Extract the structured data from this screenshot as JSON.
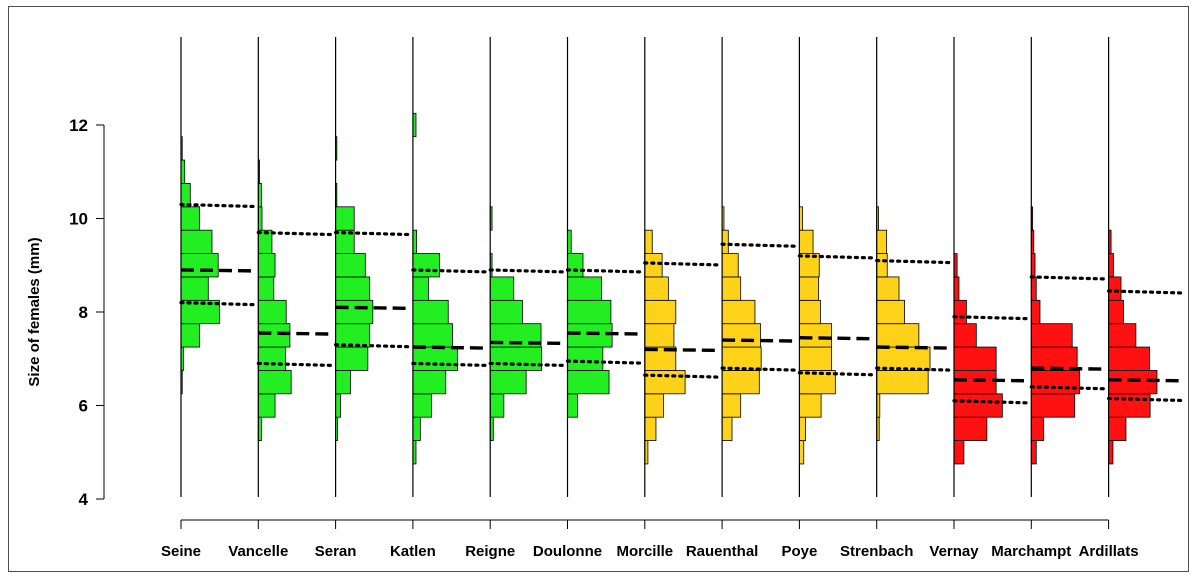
{
  "chart_data": {
    "type": "histogram",
    "ylabel": "Size of females (mm)",
    "ylim": [
      4,
      13
    ],
    "yticks": [
      "4",
      "6",
      "8",
      "10",
      "12"
    ],
    "bin_width_mm": 0.5,
    "grid": false,
    "colors": {
      "green": "#22ee22",
      "yellow": "#ffd21a",
      "red": "#ff1111"
    },
    "sites": [
      {
        "name": "Seine",
        "color": "green",
        "mean": 8.9,
        "q_low": 8.2,
        "q_high": 10.3,
        "bins": [
          [
            6.5,
            0.02
          ],
          [
            7.0,
            0.04
          ],
          [
            7.5,
            0.3
          ],
          [
            8.0,
            0.62
          ],
          [
            8.5,
            0.44
          ],
          [
            9.0,
            0.6
          ],
          [
            9.5,
            0.5
          ],
          [
            10.0,
            0.3
          ],
          [
            10.5,
            0.15
          ],
          [
            11.0,
            0.06
          ],
          [
            11.5,
            0.02
          ]
        ]
      },
      {
        "name": "Vancelle",
        "color": "green",
        "mean": 7.55,
        "q_low": 6.9,
        "q_high": 9.7,
        "bins": [
          [
            5.5,
            0.05
          ],
          [
            6.0,
            0.27
          ],
          [
            6.5,
            0.53
          ],
          [
            7.0,
            0.44
          ],
          [
            7.5,
            0.51
          ],
          [
            8.0,
            0.45
          ],
          [
            8.5,
            0.25
          ],
          [
            9.0,
            0.27
          ],
          [
            9.5,
            0.22
          ],
          [
            10.0,
            0.06
          ],
          [
            10.5,
            0.05
          ],
          [
            11.0,
            0.02
          ]
        ]
      },
      {
        "name": "Seran",
        "color": "green",
        "mean": 8.1,
        "q_low": 7.3,
        "q_high": 9.7,
        "bins": [
          [
            5.5,
            0.03
          ],
          [
            6.0,
            0.08
          ],
          [
            6.5,
            0.24
          ],
          [
            7.0,
            0.52
          ],
          [
            7.5,
            0.55
          ],
          [
            8.0,
            0.6
          ],
          [
            8.5,
            0.55
          ],
          [
            9.0,
            0.48
          ],
          [
            9.5,
            0.3
          ],
          [
            10.0,
            0.3
          ],
          [
            10.5,
            0.02
          ],
          [
            11.5,
            0.02
          ]
        ]
      },
      {
        "name": "Katlen",
        "color": "green",
        "mean": 7.25,
        "q_low": 6.9,
        "q_high": 8.9,
        "bins": [
          [
            5.0,
            0.05
          ],
          [
            5.5,
            0.12
          ],
          [
            6.0,
            0.3
          ],
          [
            6.5,
            0.53
          ],
          [
            7.0,
            0.72
          ],
          [
            7.5,
            0.64
          ],
          [
            8.0,
            0.57
          ],
          [
            8.5,
            0.25
          ],
          [
            9.0,
            0.43
          ],
          [
            9.5,
            0.06
          ],
          [
            12.0,
            0.05
          ]
        ]
      },
      {
        "name": "Reigne",
        "color": "green",
        "mean": 7.35,
        "q_low": 6.9,
        "q_high": 8.9,
        "bins": [
          [
            5.5,
            0.05
          ],
          [
            6.0,
            0.22
          ],
          [
            6.5,
            0.58
          ],
          [
            7.0,
            0.83
          ],
          [
            7.5,
            0.82
          ],
          [
            8.0,
            0.52
          ],
          [
            8.5,
            0.38
          ],
          [
            9.0,
            0.03
          ],
          [
            10.0,
            0.03
          ]
        ]
      },
      {
        "name": "Doulonne",
        "color": "green",
        "mean": 7.55,
        "q_low": 6.95,
        "q_high": 8.9,
        "bins": [
          [
            6.0,
            0.16
          ],
          [
            6.5,
            0.67
          ],
          [
            7.0,
            0.57
          ],
          [
            7.5,
            0.72
          ],
          [
            8.0,
            0.7
          ],
          [
            8.5,
            0.55
          ],
          [
            9.0,
            0.25
          ],
          [
            9.5,
            0.06
          ]
        ]
      },
      {
        "name": "Morcille",
        "color": "yellow",
        "mean": 7.2,
        "q_low": 6.65,
        "q_high": 9.05,
        "bins": [
          [
            5.0,
            0.05
          ],
          [
            5.5,
            0.18
          ],
          [
            6.0,
            0.3
          ],
          [
            6.5,
            0.65
          ],
          [
            7.0,
            0.5
          ],
          [
            7.5,
            0.47
          ],
          [
            8.0,
            0.5
          ],
          [
            8.5,
            0.38
          ],
          [
            9.0,
            0.28
          ],
          [
            9.5,
            0.12
          ]
        ]
      },
      {
        "name": "Rauenthal",
        "color": "yellow",
        "mean": 7.4,
        "q_low": 6.8,
        "q_high": 9.45,
        "bins": [
          [
            5.5,
            0.16
          ],
          [
            6.0,
            0.3
          ],
          [
            6.5,
            0.6
          ],
          [
            7.0,
            0.63
          ],
          [
            7.5,
            0.62
          ],
          [
            8.0,
            0.53
          ],
          [
            8.5,
            0.3
          ],
          [
            9.0,
            0.26
          ],
          [
            9.5,
            0.1
          ],
          [
            10.0,
            0.03
          ]
        ]
      },
      {
        "name": "Poye",
        "color": "yellow",
        "mean": 7.45,
        "q_low": 6.7,
        "q_high": 9.2,
        "bins": [
          [
            5.0,
            0.07
          ],
          [
            5.5,
            0.1
          ],
          [
            6.0,
            0.35
          ],
          [
            6.5,
            0.58
          ],
          [
            7.0,
            0.52
          ],
          [
            7.5,
            0.52
          ],
          [
            8.0,
            0.34
          ],
          [
            8.5,
            0.31
          ],
          [
            9.0,
            0.32
          ],
          [
            9.5,
            0.22
          ],
          [
            10.0,
            0.05
          ]
        ]
      },
      {
        "name": "Strenbach",
        "color": "yellow",
        "mean": 7.25,
        "q_low": 6.8,
        "q_high": 9.1,
        "bins": [
          [
            5.5,
            0.04
          ],
          [
            6.0,
            0.05
          ],
          [
            6.5,
            0.83
          ],
          [
            7.0,
            0.86
          ],
          [
            7.5,
            0.68
          ],
          [
            8.0,
            0.45
          ],
          [
            8.5,
            0.36
          ],
          [
            9.0,
            0.17
          ],
          [
            9.5,
            0.16
          ],
          [
            10.0,
            0.03
          ]
        ]
      },
      {
        "name": "Vernay",
        "color": "red",
        "mean": 6.55,
        "q_low": 6.1,
        "q_high": 7.9,
        "bins": [
          [
            5.0,
            0.16
          ],
          [
            5.5,
            0.53
          ],
          [
            6.0,
            0.78
          ],
          [
            6.5,
            0.68
          ],
          [
            7.0,
            0.68
          ],
          [
            7.5,
            0.36
          ],
          [
            8.0,
            0.2
          ],
          [
            8.5,
            0.08
          ],
          [
            9.0,
            0.05
          ]
        ]
      },
      {
        "name": "Marchampt",
        "color": "red",
        "mean": 6.8,
        "q_low": 6.4,
        "q_high": 8.75,
        "bins": [
          [
            5.0,
            0.08
          ],
          [
            5.5,
            0.2
          ],
          [
            6.0,
            0.7
          ],
          [
            6.5,
            0.78
          ],
          [
            7.0,
            0.74
          ],
          [
            7.5,
            0.66
          ],
          [
            8.0,
            0.14
          ],
          [
            8.5,
            0.08
          ],
          [
            9.0,
            0.06
          ],
          [
            9.5,
            0.04
          ],
          [
            10.0,
            0.02
          ]
        ]
      },
      {
        "name": "Ardillats",
        "color": "red",
        "mean": 6.55,
        "q_low": 6.15,
        "q_high": 8.45,
        "bins": [
          [
            5.0,
            0.07
          ],
          [
            5.5,
            0.28
          ],
          [
            6.0,
            0.67
          ],
          [
            6.5,
            0.78
          ],
          [
            7.0,
            0.66
          ],
          [
            7.5,
            0.44
          ],
          [
            8.0,
            0.24
          ],
          [
            8.5,
            0.2
          ],
          [
            9.0,
            0.08
          ],
          [
            9.5,
            0.04
          ]
        ]
      }
    ]
  }
}
